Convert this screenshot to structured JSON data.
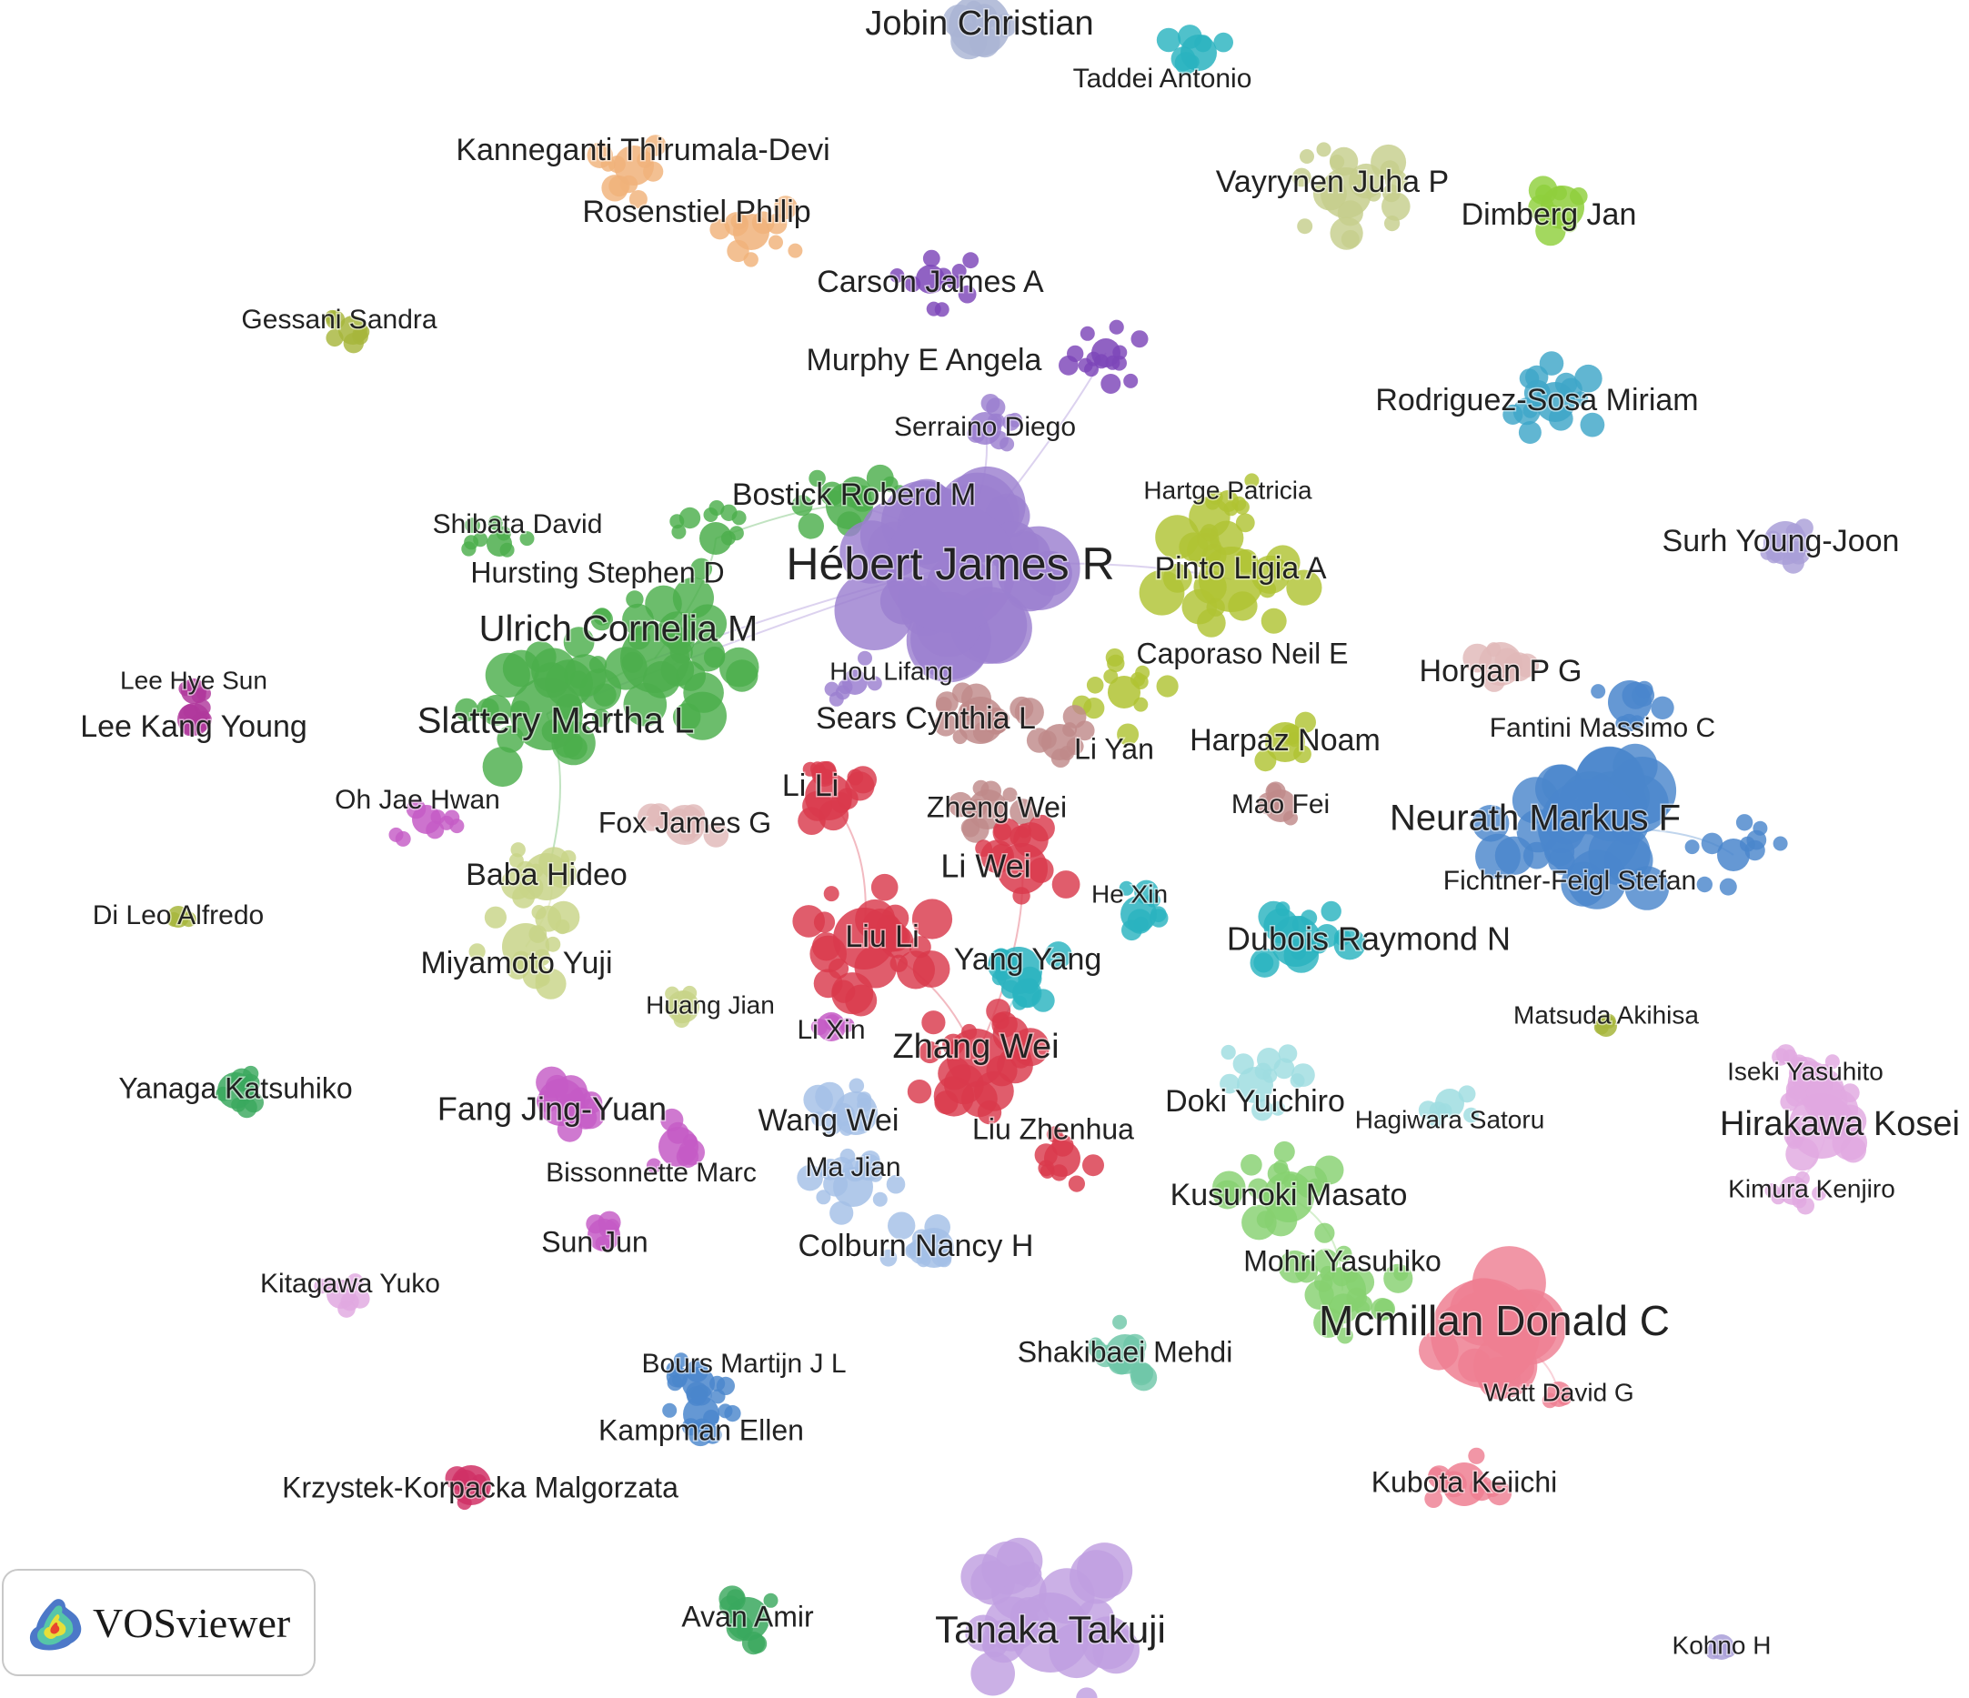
{
  "diagram": {
    "type": "co-authorship network map",
    "colors": {
      "purple": "#9b7fd0",
      "orange": "#ec8a3c",
      "green": "#4cae4c",
      "red": "#d9394c",
      "olive": "#b0c333",
      "blue": "#4a86cc",
      "teal": "#2ab3bf",
      "pink": "#ee7f92",
      "lightgreen": "#86d170",
      "lightolive": "#c6ce8c",
      "peach": "#f0b27a",
      "magenta": "#c45bc6",
      "darkmagenta": "#b0389c",
      "lightpurple": "#c09fe0",
      "lavender": "#a99fd8",
      "lightblue": "#a3c0e6",
      "seafoam": "#6fc7a8",
      "mauve": "#c08a8a",
      "rose": "#e0b8b8",
      "crimson": "#d03065",
      "lilac": "#e0a8e0",
      "cyanlight": "#9fdde0",
      "grayblue": "#a9b4d4",
      "mint": "#b8dcc6",
      "lime": "#8fcf3c",
      "emerald": "#3aa85e",
      "mustard": "#a7b63c",
      "darkpurple": "#7d46b8",
      "steelteal": "#3ea6c8",
      "sage": "#c8d488"
    },
    "labels": [
      {
        "text": "Jobin Christian",
        "color": "grayblue"
      },
      {
        "text": "Taddei Antonio",
        "color": "teal"
      },
      {
        "text": "Kanneganti Thirumala-Devi",
        "color": "peach"
      },
      {
        "text": "Rosenstiel Philip",
        "color": "peach"
      },
      {
        "text": "Vayrynen Juha P",
        "color": "lightolive"
      },
      {
        "text": "Dimberg Jan",
        "color": "lime"
      },
      {
        "text": "Carson James A",
        "color": "darkpurple"
      },
      {
        "text": "Gessani Sandra",
        "color": "mustard"
      },
      {
        "text": "Murphy E Angela",
        "color": "darkpurple"
      },
      {
        "text": "Rodriguez-Sosa Miriam",
        "color": "steelteal"
      },
      {
        "text": "Serraino Diego",
        "color": "purple"
      },
      {
        "text": "Bostick Roberd M",
        "color": "green"
      },
      {
        "text": "Hartge Patricia",
        "color": "olive"
      },
      {
        "text": "Shibata David",
        "color": "green"
      },
      {
        "text": "Hébert James R",
        "color": "purple"
      },
      {
        "text": "Surh Young-Joon",
        "color": "lavender"
      },
      {
        "text": "Hursting Stephen D",
        "color": "green"
      },
      {
        "text": "Pinto Ligia A",
        "color": "olive"
      },
      {
        "text": "Ulrich Cornelia M",
        "color": "green"
      },
      {
        "text": "Caporaso Neil E",
        "color": "olive"
      },
      {
        "text": "Horgan P G",
        "color": "rose"
      },
      {
        "text": "Hou Lifang",
        "color": "purple"
      },
      {
        "text": "Lee Hye Sun",
        "color": "darkmagenta"
      },
      {
        "text": "Lee Kang Young",
        "color": "darkmagenta"
      },
      {
        "text": "Slattery Martha L",
        "color": "green"
      },
      {
        "text": "Sears Cynthia L",
        "color": "mauve"
      },
      {
        "text": "Fantini Massimo C",
        "color": "blue"
      },
      {
        "text": "Li Yan",
        "color": "mauve"
      },
      {
        "text": "Harpaz Noam",
        "color": "olive"
      },
      {
        "text": "Li Li",
        "color": "red"
      },
      {
        "text": "Oh Jae Hwan",
        "color": "magenta"
      },
      {
        "text": "Zheng Wei",
        "color": "mauve"
      },
      {
        "text": "Mao Fei",
        "color": "mauve"
      },
      {
        "text": "Fox James G",
        "color": "rose"
      },
      {
        "text": "Neurath Markus F",
        "color": "blue"
      },
      {
        "text": "Li Wei",
        "color": "red"
      },
      {
        "text": "Baba Hideo",
        "color": "sage"
      },
      {
        "text": "Fichtner-Feigl Stefan",
        "color": "blue"
      },
      {
        "text": "He Xin",
        "color": "teal"
      },
      {
        "text": "Di Leo Alfredo",
        "color": "mustard"
      },
      {
        "text": "Liu Li",
        "color": "red"
      },
      {
        "text": "Dubois Raymond N",
        "color": "teal"
      },
      {
        "text": "Yang Yang",
        "color": "teal"
      },
      {
        "text": "Miyamoto Yuji",
        "color": "sage"
      },
      {
        "text": "Huang Jian",
        "color": "sage"
      },
      {
        "text": "Matsuda Akihisa",
        "color": "mustard"
      },
      {
        "text": "Li Xin",
        "color": "magenta"
      },
      {
        "text": "Zhang Wei",
        "color": "red"
      },
      {
        "text": "Iseki Yasuhito",
        "color": "lilac"
      },
      {
        "text": "Yanaga Katsuhiko",
        "color": "emerald"
      },
      {
        "text": "Doki Yuichiro",
        "color": "cyanlight"
      },
      {
        "text": "Fang Jing-Yuan",
        "color": "magenta"
      },
      {
        "text": "Hirakawa Kosei",
        "color": "lilac"
      },
      {
        "text": "Hagiwara Satoru",
        "color": "cyanlight"
      },
      {
        "text": "Wang Wei",
        "color": "lightblue"
      },
      {
        "text": "Liu Zhenhua",
        "color": "red"
      },
      {
        "text": "Ma Jian",
        "color": "lightblue"
      },
      {
        "text": "Bissonnette Marc",
        "color": "magenta"
      },
      {
        "text": "Kimura Kenjiro",
        "color": "lilac"
      },
      {
        "text": "Kusunoki Masato",
        "color": "lightgreen"
      },
      {
        "text": "Sun Jun",
        "color": "magenta"
      },
      {
        "text": "Colburn Nancy H",
        "color": "lightblue"
      },
      {
        "text": "Mohri Yasuhiko",
        "color": "lightgreen"
      },
      {
        "text": "Kitagawa Yuko",
        "color": "lilac"
      },
      {
        "text": "Mcmillan Donald C",
        "color": "pink"
      },
      {
        "text": "Shakibaei Mehdi",
        "color": "seafoam"
      },
      {
        "text": "Bours Martijn J L",
        "color": "blue"
      },
      {
        "text": "Watt David G",
        "color": "pink"
      },
      {
        "text": "Kampman Ellen",
        "color": "blue"
      },
      {
        "text": "Kubota Keiichi",
        "color": "pink"
      },
      {
        "text": "Krzystek-Korpacka Malgorzata",
        "color": "crimson"
      },
      {
        "text": "Avan Amir",
        "color": "emerald"
      },
      {
        "text": "Tanaka Takuji",
        "color": "lightpurple"
      },
      {
        "text": "Kohno H",
        "color": "lavender"
      }
    ]
  },
  "logo": {
    "text": "VOSviewer",
    "icon": "vosviewer-density-map-icon"
  }
}
